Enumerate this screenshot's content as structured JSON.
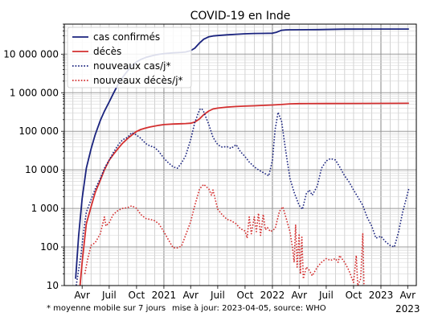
{
  "chart_data": {
    "type": "line",
    "title": "COVID-19 en Inde",
    "y_scale": "log",
    "ylim": [
      10,
      60000000
    ],
    "y_ticks": [
      10,
      100,
      1000,
      10000,
      100000,
      1000000,
      10000000
    ],
    "y_tick_labels": [
      "10",
      "100",
      "1 000",
      "10 000",
      "100 000",
      "1 000 000",
      "10 000 000"
    ],
    "xlim": [
      "2020-02-01",
      "2023-04-30"
    ],
    "x_ticks": [
      {
        "date": "2020-04-01",
        "label": "Avr"
      },
      {
        "date": "2020-07-01",
        "label": "Juil"
      },
      {
        "date": "2020-10-01",
        "label": "Oct"
      },
      {
        "date": "2021-01-01",
        "label": "2021"
      },
      {
        "date": "2021-04-01",
        "label": "Avr"
      },
      {
        "date": "2021-07-01",
        "label": "Juil"
      },
      {
        "date": "2021-10-01",
        "label": "Oct"
      },
      {
        "date": "2022-01-01",
        "label": "2022"
      },
      {
        "date": "2022-04-01",
        "label": "Avr"
      },
      {
        "date": "2022-07-01",
        "label": "Juil"
      },
      {
        "date": "2022-10-01",
        "label": "Oct"
      },
      {
        "date": "2023-01-01",
        "label": "2023"
      },
      {
        "date": "2023-04-01",
        "label": "Avr"
      }
    ],
    "x_axis_year_label": "2023",
    "grid": true,
    "legend_position": "top-left",
    "series": [
      {
        "name": "cas confirmés",
        "color": "#1a237e",
        "style": "solid",
        "points": [
          [
            "2020-03-10",
            15
          ],
          [
            "2020-03-20",
            190
          ],
          [
            "2020-04-01",
            1800
          ],
          [
            "2020-04-15",
            11000
          ],
          [
            "2020-05-01",
            35000
          ],
          [
            "2020-05-15",
            82000
          ],
          [
            "2020-06-01",
            190000
          ],
          [
            "2020-06-15",
            330000
          ],
          [
            "2020-07-01",
            580000
          ],
          [
            "2020-07-15",
            950000
          ],
          [
            "2020-08-01",
            1700000
          ],
          [
            "2020-08-15",
            2500000
          ],
          [
            "2020-09-01",
            3700000
          ],
          [
            "2020-09-15",
            5000000
          ],
          [
            "2020-10-01",
            6300000
          ],
          [
            "2020-10-15",
            7300000
          ],
          [
            "2020-11-01",
            8200000
          ],
          [
            "2020-11-15",
            8800000
          ],
          [
            "2020-12-01",
            9450000
          ],
          [
            "2020-12-15",
            9900000
          ],
          [
            "2021-01-01",
            10300000
          ],
          [
            "2021-02-01",
            10800000
          ],
          [
            "2021-03-01",
            11100000
          ],
          [
            "2021-03-15",
            11400000
          ],
          [
            "2021-04-01",
            12300000
          ],
          [
            "2021-04-15",
            14300000
          ],
          [
            "2021-05-01",
            19500000
          ],
          [
            "2021-05-15",
            24400000
          ],
          [
            "2021-06-01",
            28200000
          ],
          [
            "2021-06-15",
            29600000
          ],
          [
            "2021-07-01",
            30400000
          ],
          [
            "2021-08-01",
            31700000
          ],
          [
            "2021-09-01",
            32800000
          ],
          [
            "2021-10-01",
            33800000
          ],
          [
            "2021-11-01",
            34300000
          ],
          [
            "2021-12-01",
            34600000
          ],
          [
            "2022-01-01",
            34900000
          ],
          [
            "2022-01-15",
            37000000
          ],
          [
            "2022-02-01",
            41600000
          ],
          [
            "2022-02-15",
            42600000
          ],
          [
            "2022-03-01",
            42900000
          ],
          [
            "2022-06-01",
            43200000
          ],
          [
            "2022-09-01",
            44500000
          ],
          [
            "2023-01-01",
            44680000
          ],
          [
            "2023-04-05",
            44720000
          ]
        ]
      },
      {
        "name": "décès",
        "color": "#d32f2f",
        "style": "solid",
        "points": [
          [
            "2020-03-25",
            10
          ],
          [
            "2020-04-01",
            40
          ],
          [
            "2020-04-15",
            400
          ],
          [
            "2020-05-01",
            1100
          ],
          [
            "2020-05-15",
            2600
          ],
          [
            "2020-06-01",
            5400
          ],
          [
            "2020-06-15",
            10000
          ],
          [
            "2020-07-01",
            17800
          ],
          [
            "2020-07-15",
            25000
          ],
          [
            "2020-08-01",
            36500
          ],
          [
            "2020-08-15",
            49000
          ],
          [
            "2020-09-01",
            65000
          ],
          [
            "2020-09-15",
            80000
          ],
          [
            "2020-10-01",
            99000
          ],
          [
            "2020-10-15",
            111000
          ],
          [
            "2020-11-01",
            122000
          ],
          [
            "2020-11-15",
            129000
          ],
          [
            "2020-12-01",
            137000
          ],
          [
            "2020-12-15",
            143000
          ],
          [
            "2021-01-01",
            149000
          ],
          [
            "2021-02-01",
            154000
          ],
          [
            "2021-03-01",
            157000
          ],
          [
            "2021-03-15",
            159000
          ],
          [
            "2021-04-01",
            162000
          ],
          [
            "2021-04-15",
            174000
          ],
          [
            "2021-05-01",
            211000
          ],
          [
            "2021-05-15",
            270000
          ],
          [
            "2021-06-01",
            335000
          ],
          [
            "2021-06-15",
            378000
          ],
          [
            "2021-07-01",
            399000
          ],
          [
            "2021-08-01",
            424000
          ],
          [
            "2021-09-01",
            439000
          ],
          [
            "2021-10-01",
            449000
          ],
          [
            "2021-11-01",
            458000
          ],
          [
            "2021-12-01",
            469000
          ],
          [
            "2022-01-01",
            481000
          ],
          [
            "2022-02-01",
            496000
          ],
          [
            "2022-03-01",
            514000
          ],
          [
            "2022-04-01",
            521000
          ],
          [
            "2022-07-01",
            525000
          ],
          [
            "2022-10-01",
            528000
          ],
          [
            "2023-01-01",
            530700
          ],
          [
            "2023-04-05",
            530900
          ]
        ]
      },
      {
        "name": "nouveaux cas/j*",
        "color": "#1a237e",
        "style": "dotted",
        "points": [
          [
            "2020-03-12",
            10
          ],
          [
            "2020-03-20",
            25
          ],
          [
            "2020-03-28",
            60
          ],
          [
            "2020-04-05",
            220
          ],
          [
            "2020-04-15",
            800
          ],
          [
            "2020-05-01",
            1700
          ],
          [
            "2020-05-15",
            3200
          ],
          [
            "2020-06-01",
            6000
          ],
          [
            "2020-06-15",
            11000
          ],
          [
            "2020-07-01",
            18000
          ],
          [
            "2020-07-15",
            28000
          ],
          [
            "2020-08-01",
            45000
          ],
          [
            "2020-08-15",
            60000
          ],
          [
            "2020-09-01",
            70000
          ],
          [
            "2020-09-15",
            92000
          ],
          [
            "2020-10-01",
            80000
          ],
          [
            "2020-10-15",
            66000
          ],
          [
            "2020-11-01",
            48000
          ],
          [
            "2020-11-15",
            42000
          ],
          [
            "2020-12-01",
            38000
          ],
          [
            "2020-12-15",
            30000
          ],
          [
            "2021-01-01",
            20000
          ],
          [
            "2021-01-15",
            15500
          ],
          [
            "2021-02-01",
            12000
          ],
          [
            "2021-02-15",
            11000
          ],
          [
            "2021-03-01",
            15000
          ],
          [
            "2021-03-15",
            23000
          ],
          [
            "2021-04-01",
            60000
          ],
          [
            "2021-04-15",
            170000
          ],
          [
            "2021-05-01",
            365000
          ],
          [
            "2021-05-08",
            390000
          ],
          [
            "2021-05-15",
            320000
          ],
          [
            "2021-06-01",
            150000
          ],
          [
            "2021-06-15",
            70000
          ],
          [
            "2021-07-01",
            45000
          ],
          [
            "2021-07-15",
            39000
          ],
          [
            "2021-08-01",
            40000
          ],
          [
            "2021-08-15",
            36000
          ],
          [
            "2021-09-01",
            45000
          ],
          [
            "2021-09-15",
            30000
          ],
          [
            "2021-10-01",
            22000
          ],
          [
            "2021-10-15",
            16000
          ],
          [
            "2021-11-01",
            12000
          ],
          [
            "2021-11-15",
            10000
          ],
          [
            "2021-12-01",
            8500
          ],
          [
            "2021-12-20",
            7000
          ],
          [
            "2022-01-01",
            18000
          ],
          [
            "2022-01-10",
            110000
          ],
          [
            "2022-01-20",
            310000
          ],
          [
            "2022-02-01",
            180000
          ],
          [
            "2022-02-10",
            55000
          ],
          [
            "2022-02-20",
            17000
          ],
          [
            "2022-03-01",
            6000
          ],
          [
            "2022-03-15",
            2600
          ],
          [
            "2022-04-01",
            1200
          ],
          [
            "2022-04-12",
            950
          ],
          [
            "2022-04-25",
            2400
          ],
          [
            "2022-05-05",
            3000
          ],
          [
            "2022-05-15",
            2200
          ],
          [
            "2022-06-01",
            3800
          ],
          [
            "2022-06-15",
            11000
          ],
          [
            "2022-07-01",
            17000
          ],
          [
            "2022-07-15",
            19500
          ],
          [
            "2022-08-01",
            18000
          ],
          [
            "2022-08-15",
            12000
          ],
          [
            "2022-09-01",
            7000
          ],
          [
            "2022-09-15",
            5000
          ],
          [
            "2022-10-01",
            3000
          ],
          [
            "2022-10-15",
            2000
          ],
          [
            "2022-11-01",
            1200
          ],
          [
            "2022-11-15",
            600
          ],
          [
            "2022-12-01",
            350
          ],
          [
            "2022-12-15",
            170
          ],
          [
            "2023-01-01",
            190
          ],
          [
            "2023-01-15",
            140
          ],
          [
            "2023-02-01",
            110
          ],
          [
            "2023-02-15",
            100
          ],
          [
            "2023-03-01",
            240
          ],
          [
            "2023-03-15",
            800
          ],
          [
            "2023-04-05",
            3300
          ]
        ]
      },
      {
        "name": "nouveaux décès/j*",
        "color": "#d32f2f",
        "style": "dotted",
        "points": [
          [
            "2020-04-10",
            20
          ],
          [
            "2020-04-20",
            50
          ],
          [
            "2020-05-01",
            110
          ],
          [
            "2020-05-15",
            130
          ],
          [
            "2020-06-01",
            220
          ],
          [
            "2020-06-15",
            600
          ],
          [
            "2020-06-20",
            350
          ],
          [
            "2020-07-01",
            430
          ],
          [
            "2020-07-15",
            700
          ],
          [
            "2020-08-01",
            900
          ],
          [
            "2020-08-15",
            1000
          ],
          [
            "2020-09-01",
            1050
          ],
          [
            "2020-09-15",
            1170
          ],
          [
            "2020-10-01",
            1000
          ],
          [
            "2020-10-15",
            700
          ],
          [
            "2020-11-01",
            550
          ],
          [
            "2020-11-15",
            520
          ],
          [
            "2020-12-01",
            480
          ],
          [
            "2020-12-15",
            400
          ],
          [
            "2021-01-01",
            250
          ],
          [
            "2021-01-15",
            160
          ],
          [
            "2021-02-01",
            95
          ],
          [
            "2021-02-15",
            95
          ],
          [
            "2021-03-01",
            105
          ],
          [
            "2021-03-15",
            200
          ],
          [
            "2021-04-01",
            450
          ],
          [
            "2021-04-15",
            1200
          ],
          [
            "2021-05-01",
            3200
          ],
          [
            "2021-05-15",
            4200
          ],
          [
            "2021-06-01",
            3200
          ],
          [
            "2021-06-10",
            2200
          ],
          [
            "2021-06-15",
            3000
          ],
          [
            "2021-07-01",
            950
          ],
          [
            "2021-07-15",
            700
          ],
          [
            "2021-08-01",
            520
          ],
          [
            "2021-08-15",
            480
          ],
          [
            "2021-09-01",
            400
          ],
          [
            "2021-09-15",
            300
          ],
          [
            "2021-10-01",
            260
          ],
          [
            "2021-10-08",
            170
          ],
          [
            "2021-10-15",
            600
          ],
          [
            "2021-10-22",
            220
          ],
          [
            "2021-11-01",
            600
          ],
          [
            "2021-11-08",
            250
          ],
          [
            "2021-11-15",
            750
          ],
          [
            "2021-11-22",
            200
          ],
          [
            "2021-12-01",
            700
          ],
          [
            "2021-12-08",
            280
          ],
          [
            "2021-12-15",
            320
          ],
          [
            "2021-12-25",
            250
          ],
          [
            "2022-01-10",
            300
          ],
          [
            "2022-01-25",
            850
          ],
          [
            "2022-02-05",
            1100
          ],
          [
            "2022-02-15",
            600
          ],
          [
            "2022-03-01",
            250
          ],
          [
            "2022-03-10",
            90
          ],
          [
            "2022-03-15",
            40
          ],
          [
            "2022-03-20",
            380
          ],
          [
            "2022-03-25",
            30
          ],
          [
            "2022-04-01",
            220
          ],
          [
            "2022-04-05",
            20
          ],
          [
            "2022-04-10",
            180
          ],
          [
            "2022-04-15",
            15
          ],
          [
            "2022-04-25",
            30
          ],
          [
            "2022-05-05",
            25
          ],
          [
            "2022-05-15",
            18
          ],
          [
            "2022-06-01",
            30
          ],
          [
            "2022-06-15",
            40
          ],
          [
            "2022-07-01",
            50
          ],
          [
            "2022-07-15",
            45
          ],
          [
            "2022-08-01",
            50
          ],
          [
            "2022-08-10",
            40
          ],
          [
            "2022-08-15",
            60
          ],
          [
            "2022-09-01",
            40
          ],
          [
            "2022-09-15",
            25
          ],
          [
            "2022-10-01",
            12
          ],
          [
            "2022-10-10",
            60
          ],
          [
            "2022-10-15",
            10
          ],
          [
            "2022-10-25",
            15
          ],
          [
            "2022-11-01",
            220
          ],
          [
            "2022-11-05",
            10
          ]
        ]
      }
    ]
  },
  "footnote_left": "* moyenne mobile sur 7 jours",
  "footnote_right": "mise à jour: 2023-04-05, source: WHO"
}
